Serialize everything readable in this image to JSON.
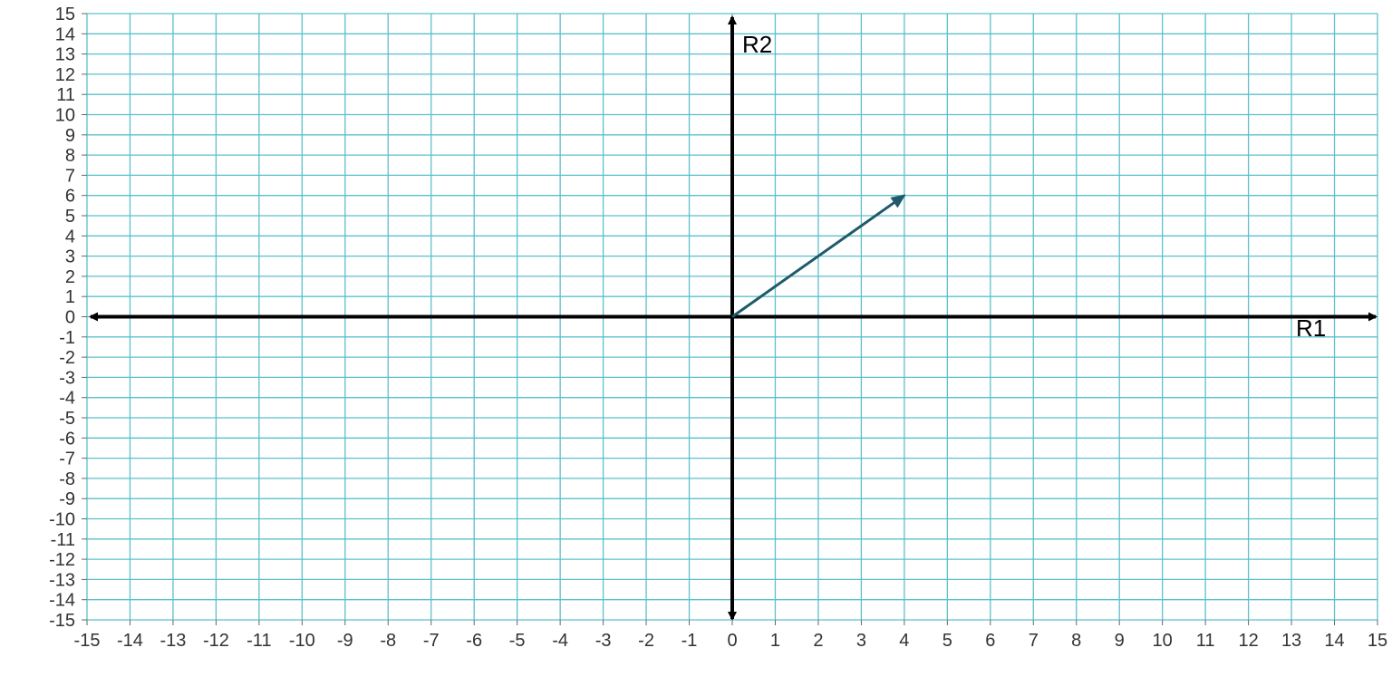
{
  "chart_data": {
    "type": "vector",
    "x_axis": {
      "label": "R1",
      "range": [
        -15,
        15
      ],
      "ticks": [
        -15,
        -14,
        -13,
        -12,
        -11,
        -10,
        -9,
        -8,
        -7,
        -6,
        -5,
        -4,
        -3,
        -2,
        -1,
        0,
        1,
        2,
        3,
        4,
        5,
        6,
        7,
        8,
        9,
        10,
        11,
        12,
        13,
        14,
        15
      ]
    },
    "y_axis": {
      "label": "R2",
      "range": [
        -15,
        15
      ],
      "ticks": [
        -15,
        -14,
        -13,
        -12,
        -11,
        -10,
        -9,
        -8,
        -7,
        -6,
        -5,
        -4,
        -3,
        -2,
        -1,
        0,
        1,
        2,
        3,
        4,
        5,
        6,
        7,
        8,
        9,
        10,
        11,
        12,
        13,
        14,
        15
      ]
    },
    "grid": true,
    "vectors": [
      {
        "from": [
          0,
          0
        ],
        "to": [
          4,
          6
        ]
      }
    ]
  },
  "colors": {
    "grid": "#5bc0cc",
    "axis": "#000000",
    "vector": "#1f5a6a",
    "tick_text": "#333333"
  }
}
